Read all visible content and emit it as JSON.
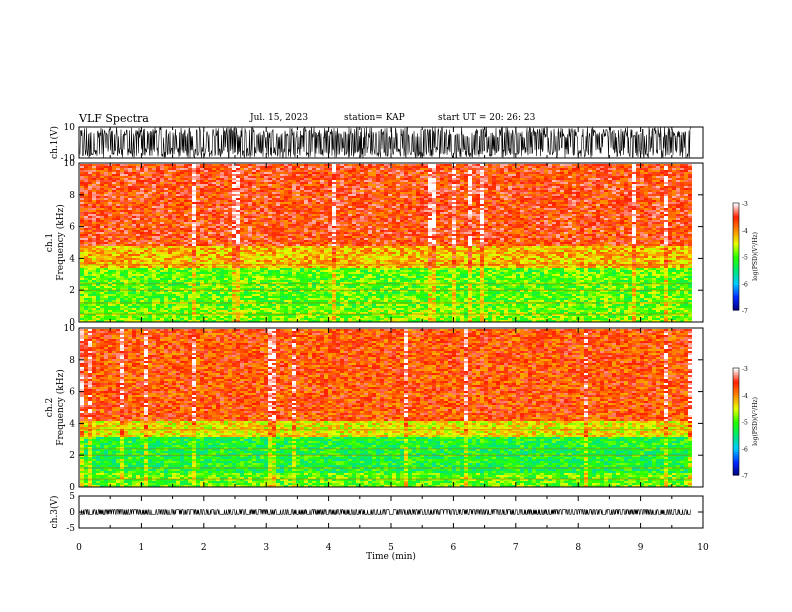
{
  "header": {
    "title": "VLF Spectra",
    "date": "Jul. 15, 2023",
    "station": "station= KAP",
    "start": "start UT =  20: 26: 23"
  },
  "chart_data": [
    {
      "type": "line",
      "name": "ch1-waveform",
      "ylabel": "ch.1(V)",
      "ylim": [
        -10,
        10
      ],
      "yticks": [
        "10",
        "-10"
      ],
      "xlim": [
        0,
        10
      ],
      "signal": {
        "mean": 0,
        "range": [
          -10,
          10
        ],
        "duration_min": 9.8
      }
    },
    {
      "type": "heatmap",
      "name": "ch1-spectrogram",
      "ylabel": "ch.1\nFrequency (kHz)",
      "ylim": [
        0,
        10
      ],
      "yticks": [
        "0",
        "2",
        "4",
        "6",
        "8",
        "10"
      ],
      "xlim": [
        0,
        10
      ],
      "color_scale": {
        "label": "log(PSD)(V²/Hz)",
        "range": [
          -7,
          -3
        ],
        "ticks": [
          "-3",
          "-4",
          "-5",
          "-6",
          "-7"
        ]
      },
      "bands": [
        {
          "from_khz": 0.0,
          "to_khz": 1.0,
          "level": -4.8
        },
        {
          "from_khz": 1.0,
          "to_khz": 3.5,
          "level": -4.9
        },
        {
          "from_khz": 3.5,
          "to_khz": 4.8,
          "level": -4.2
        },
        {
          "from_khz": 4.8,
          "to_khz": 10.0,
          "level": -3.6
        }
      ]
    },
    {
      "type": "heatmap",
      "name": "ch2-spectrogram",
      "ylabel": "ch.2\nFrequency (kHz)",
      "ylim": [
        0,
        10
      ],
      "yticks": [
        "0",
        "2",
        "4",
        "6",
        "8",
        "10"
      ],
      "xlim": [
        0,
        10
      ],
      "color_scale": {
        "label": "log(PSD)(V²/Hz)",
        "range": [
          -7,
          -3
        ],
        "ticks": [
          "-3",
          "-4",
          "-5",
          "-6",
          "-7"
        ]
      },
      "bands": [
        {
          "from_khz": 0.0,
          "to_khz": 1.0,
          "level": -4.9
        },
        {
          "from_khz": 1.0,
          "to_khz": 3.2,
          "level": -5.2
        },
        {
          "from_khz": 3.2,
          "to_khz": 4.2,
          "level": -4.4
        },
        {
          "from_khz": 4.2,
          "to_khz": 10.0,
          "level": -3.7
        }
      ]
    },
    {
      "type": "line",
      "name": "ch3-waveform",
      "ylabel": "ch.3(V)",
      "ylim": [
        -5,
        5
      ],
      "yticks": [
        "5",
        "0",
        "-5"
      ],
      "xlim": [
        0,
        10
      ],
      "signal": {
        "mean": 0,
        "range": [
          -0.8,
          0.8
        ],
        "duration_min": 9.8
      }
    }
  ],
  "x_axis": {
    "label": "Time (min)",
    "ticks": [
      "0",
      "1",
      "2",
      "3",
      "4",
      "5",
      "6",
      "7",
      "8",
      "9",
      "10"
    ]
  }
}
